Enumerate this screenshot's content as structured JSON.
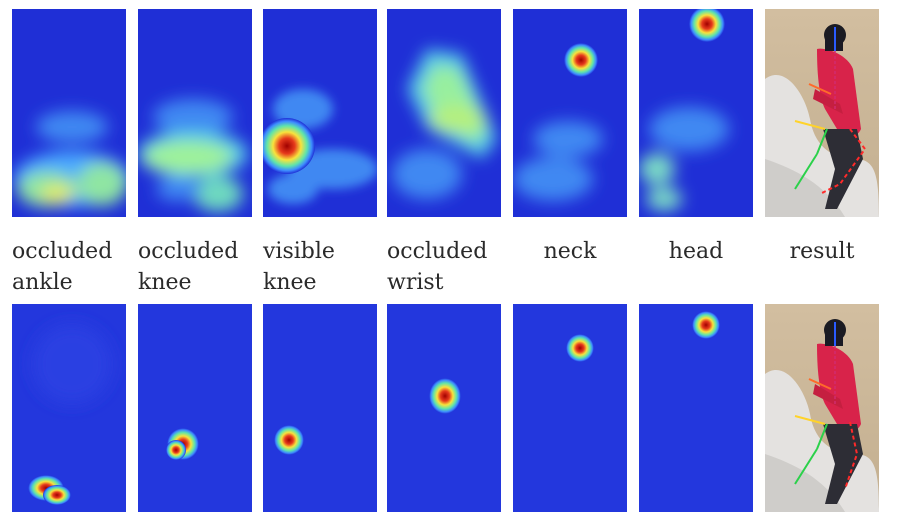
{
  "colors": {
    "heat_background": "#1f2fd6",
    "heat_low": "#3f8dff",
    "heat_mid": "#59e3ae",
    "heat_high": "#f6e63c",
    "heat_peak": "#d21c0f",
    "text": "#2a2a2a"
  },
  "labels": [
    {
      "line1": "occluded",
      "line2": "ankle"
    },
    {
      "line1": "occluded",
      "line2": "knee"
    },
    {
      "line1": "visible",
      "line2": "knee"
    },
    {
      "line1": "occluded",
      "line2": "wrist"
    },
    {
      "line1": "neck",
      "line2": ""
    },
    {
      "line1": "head",
      "line2": ""
    },
    {
      "line1": "result",
      "line2": ""
    }
  ]
}
